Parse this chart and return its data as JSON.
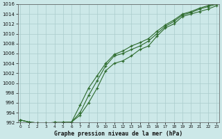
{
  "title": "Graphe pression niveau de la mer (hPa)",
  "bg_color": "#cce8e8",
  "grid_color": "#aacccc",
  "line_color": "#2d6b2d",
  "x_values": [
    0,
    1,
    2,
    3,
    4,
    5,
    6,
    7,
    8,
    9,
    10,
    11,
    12,
    13,
    14,
    15,
    16,
    17,
    18,
    19,
    20,
    21,
    22,
    23
  ],
  "line1": [
    992.5,
    992.1,
    991.9,
    991.9,
    992.0,
    992.0,
    992.1,
    993.5,
    996.0,
    999.0,
    1002.5,
    1004.0,
    1004.5,
    1005.5,
    1006.8,
    1007.5,
    1009.5,
    1011.2,
    1012.0,
    1013.5,
    1014.0,
    1014.5,
    1015.0,
    1015.7
  ],
  "line2": [
    992.5,
    992.1,
    991.9,
    991.9,
    992.0,
    992.0,
    992.1,
    994.0,
    997.5,
    1000.5,
    1003.5,
    1005.5,
    1006.0,
    1006.8,
    1007.5,
    1008.5,
    1010.0,
    1011.5,
    1012.5,
    1013.8,
    1014.3,
    1015.0,
    1015.5,
    1016.0
  ],
  "line3": [
    992.5,
    992.1,
    991.9,
    991.9,
    992.0,
    992.0,
    992.1,
    995.5,
    999.0,
    1001.5,
    1004.0,
    1005.8,
    1006.5,
    1007.5,
    1008.2,
    1009.0,
    1010.5,
    1011.8,
    1012.8,
    1014.0,
    1014.5,
    1015.2,
    1015.7,
    1016.2
  ],
  "ylim": [
    992,
    1016
  ],
  "yticks": [
    992,
    994,
    996,
    998,
    1000,
    1002,
    1004,
    1006,
    1008,
    1010,
    1012,
    1014,
    1016
  ],
  "xlim": [
    -0.3,
    23.3
  ],
  "marker": "+",
  "marker_size": 3.5,
  "line_width": 0.8
}
